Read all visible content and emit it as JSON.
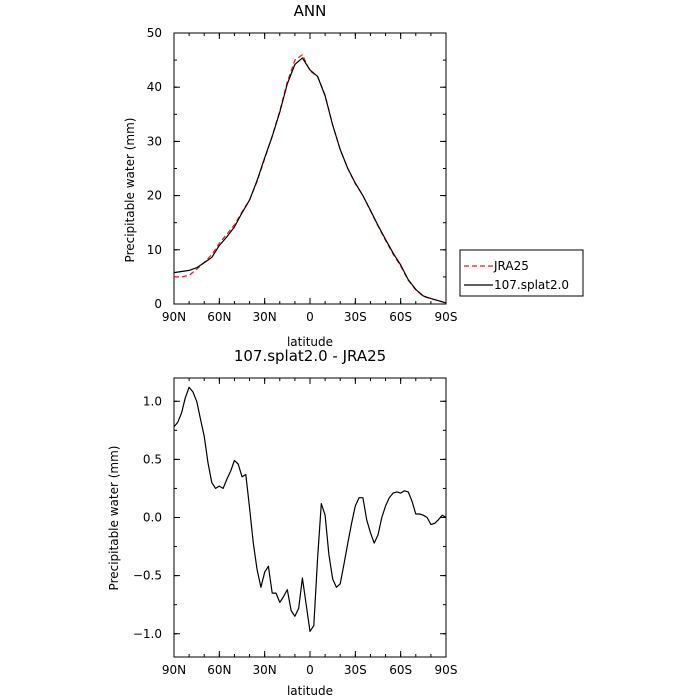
{
  "chart_data": [
    {
      "type": "line",
      "title": "ANN",
      "xlabel": "latitude",
      "ylabel": "Precipitable water (mm)",
      "xlim": [
        -90,
        90
      ],
      "ylim": [
        0,
        50
      ],
      "x_ticks": [
        -90,
        -60,
        -30,
        0,
        30,
        60,
        90
      ],
      "x_tick_labels": [
        "90N",
        "60N",
        "30N",
        "0",
        "30S",
        "60S",
        "90S"
      ],
      "y_ticks": [
        0,
        10,
        20,
        30,
        40,
        50
      ],
      "y_tick_labels": [
        "0",
        "10",
        "20",
        "30",
        "40",
        "50"
      ],
      "legend_position": "right-outside",
      "grid": false,
      "series": [
        {
          "name": "JRA25",
          "color": "#e41a1c",
          "dash": "dashed",
          "x": [
            -90,
            -85,
            -80,
            -75,
            -70,
            -65,
            -60,
            -55,
            -50,
            -45,
            -40,
            -35,
            -30,
            -25,
            -20,
            -15,
            -10,
            -5,
            0,
            5,
            10,
            15,
            20,
            25,
            30,
            35,
            40,
            45,
            50,
            55,
            60,
            65,
            70,
            75,
            80,
            85,
            90
          ],
          "y": [
            5.0,
            5.0,
            5.3,
            6.4,
            7.7,
            9.1,
            11.2,
            12.9,
            14.6,
            17.0,
            19.2,
            22.6,
            26.8,
            31.0,
            35.6,
            41.0,
            45.0,
            46.0,
            43.0,
            42.0,
            38.5,
            33.0,
            28.5,
            25.0,
            22.2,
            20.0,
            17.2,
            14.4,
            11.7,
            9.2,
            7.0,
            4.4,
            2.6,
            1.4,
            1.0,
            0.6,
            0.2
          ]
        },
        {
          "name": "107.splat2.0",
          "color": "#000000",
          "dash": "solid",
          "x": [
            -90,
            -85,
            -80,
            -75,
            -70,
            -65,
            -60,
            -55,
            -50,
            -45,
            -40,
            -35,
            -30,
            -25,
            -20,
            -15,
            -10,
            -5,
            0,
            5,
            10,
            15,
            20,
            25,
            30,
            35,
            40,
            45,
            50,
            55,
            60,
            65,
            70,
            75,
            80,
            85,
            90
          ],
          "y": [
            5.8,
            6.0,
            6.2,
            6.7,
            7.6,
            8.6,
            10.8,
            12.4,
            14.2,
            16.8,
            19.2,
            22.8,
            27.0,
            30.9,
            35.4,
            40.6,
            44.2,
            45.4,
            43.2,
            42.0,
            38.4,
            33.0,
            28.5,
            25.0,
            22.3,
            20.0,
            17.3,
            14.5,
            11.9,
            9.4,
            7.2,
            4.5,
            2.7,
            1.5,
            1.0,
            0.6,
            0.2
          ]
        }
      ]
    },
    {
      "type": "line",
      "title": "107.splat2.0 - JRA25",
      "xlabel": "latitude",
      "ylabel": "Precipitable water (mm)",
      "xlim": [
        -90,
        90
      ],
      "ylim": [
        -1.2,
        1.2
      ],
      "x_ticks": [
        -90,
        -60,
        -30,
        0,
        30,
        60,
        90
      ],
      "x_tick_labels": [
        "90N",
        "60N",
        "30N",
        "0",
        "30S",
        "60S",
        "90S"
      ],
      "y_ticks": [
        -1.0,
        -0.5,
        0.0,
        0.5,
        1.0
      ],
      "y_tick_labels": [
        "−1.0",
        "−0.5",
        "0.0",
        "0.5",
        "1.0"
      ],
      "grid": false,
      "series": [
        {
          "color": "#000000",
          "dash": "solid",
          "x": [
            -90,
            -87.5,
            -85,
            -82.5,
            -80,
            -77.5,
            -75,
            -72.5,
            -70,
            -67.5,
            -65,
            -62.5,
            -60,
            -57.5,
            -55,
            -52.5,
            -50,
            -47.5,
            -45,
            -42.5,
            -40,
            -37.5,
            -35,
            -32.5,
            -30,
            -27.5,
            -25,
            -22.5,
            -20,
            -17.5,
            -15,
            -12.5,
            -10,
            -7.5,
            -5,
            -2.5,
            0,
            2.5,
            5,
            7.5,
            10,
            12.5,
            15,
            17.5,
            20,
            22.5,
            25,
            27.5,
            30,
            32.5,
            35,
            37.5,
            40,
            42.5,
            45,
            47.5,
            50,
            52.5,
            55,
            57.5,
            60,
            62.5,
            65,
            67.5,
            70,
            72.5,
            75,
            77.5,
            80,
            82.5,
            85,
            87.5,
            90
          ],
          "y": [
            0.78,
            0.82,
            0.9,
            1.03,
            1.12,
            1.08,
            1.0,
            0.85,
            0.7,
            0.47,
            0.3,
            0.25,
            0.27,
            0.25,
            0.33,
            0.4,
            0.49,
            0.46,
            0.35,
            0.37,
            0.08,
            -0.22,
            -0.45,
            -0.6,
            -0.47,
            -0.42,
            -0.65,
            -0.65,
            -0.73,
            -0.68,
            -0.62,
            -0.8,
            -0.85,
            -0.78,
            -0.52,
            -0.75,
            -0.98,
            -0.93,
            -0.35,
            0.12,
            0.02,
            -0.32,
            -0.53,
            -0.6,
            -0.57,
            -0.4,
            -0.22,
            -0.05,
            0.1,
            0.17,
            0.17,
            -0.02,
            -0.13,
            -0.22,
            -0.15,
            0.0,
            0.1,
            0.17,
            0.21,
            0.22,
            0.21,
            0.23,
            0.22,
            0.14,
            0.03,
            0.03,
            0.02,
            0.0,
            -0.06,
            -0.05,
            -0.02,
            0.02,
            0.0
          ]
        }
      ]
    }
  ]
}
